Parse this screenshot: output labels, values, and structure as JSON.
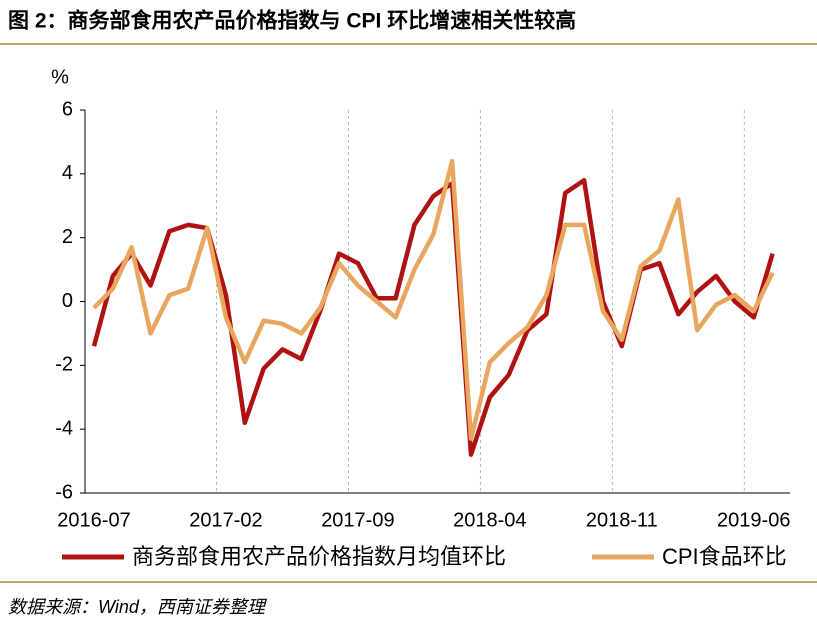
{
  "chart_data": {
    "type": "line",
    "title": "图 2：商务部食用农产品价格指数与 CPI 环比增速相关性较高",
    "y_unit": "%",
    "source": "数据来源：Wind，西南证券整理",
    "categories": [
      "2016-07",
      null,
      null,
      null,
      null,
      null,
      null,
      "2017-02",
      null,
      null,
      null,
      null,
      null,
      null,
      "2017-09",
      null,
      null,
      null,
      null,
      null,
      null,
      "2018-04",
      null,
      null,
      null,
      null,
      null,
      null,
      "2018-11",
      null,
      null,
      null,
      null,
      null,
      null,
      "2019-06",
      null
    ],
    "ylim": [
      -6,
      6
    ],
    "yticks": [
      -6,
      -4,
      -2,
      0,
      2,
      4,
      6
    ],
    "series": [
      {
        "name": "商务部食用农产品价格指数月均值环比",
        "color": "#b01212",
        "values": [
          -1.4,
          0.8,
          1.5,
          0.5,
          2.2,
          2.4,
          2.3,
          0.2,
          -3.8,
          -2.1,
          -1.5,
          -1.8,
          -0.3,
          1.5,
          1.2,
          0.1,
          0.1,
          2.4,
          3.3,
          3.7,
          -4.8,
          -3.0,
          -2.3,
          -0.9,
          -0.4,
          3.4,
          3.8,
          0.0,
          -1.4,
          1.0,
          1.2,
          -0.4,
          0.3,
          0.8,
          0.0,
          -0.5,
          1.5
        ]
      },
      {
        "name": "CPI食品环比",
        "color": "#e9a65e",
        "values": [
          -0.2,
          0.4,
          1.7,
          -1.0,
          0.2,
          0.4,
          2.3,
          -0.5,
          -1.9,
          -0.6,
          -0.7,
          -1.0,
          -0.2,
          1.2,
          0.5,
          0.0,
          -0.5,
          1.0,
          2.1,
          4.4,
          -4.3,
          -1.9,
          -1.3,
          -0.8,
          0.2,
          2.4,
          2.4,
          -0.3,
          -1.2,
          1.1,
          1.6,
          3.2,
          -0.9,
          -0.1,
          0.2,
          -0.3,
          0.9
        ]
      }
    ]
  }
}
